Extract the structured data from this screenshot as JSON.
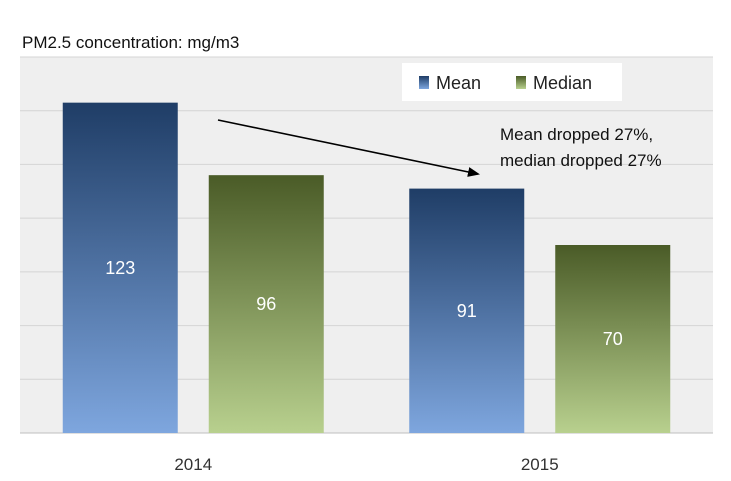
{
  "chart_data": {
    "type": "bar",
    "title": "PM2.5 concentration: mg/m3",
    "categories": [
      "2014",
      "2015"
    ],
    "series": [
      {
        "name": "Mean",
        "values": [
          123,
          91
        ],
        "color_top": "#1f3d66",
        "color_bottom": "#7ea6de"
      },
      {
        "name": "Median",
        "values": [
          96,
          70
        ],
        "color_top": "#4a5b27",
        "color_bottom": "#b8d08e"
      }
    ],
    "ylim": [
      0,
      140
    ],
    "grid": true,
    "legend": "top-right",
    "annotation": {
      "line1": "Mean dropped 27%,",
      "line2": "median dropped 27%"
    },
    "xlabel": "",
    "ylabel": ""
  }
}
